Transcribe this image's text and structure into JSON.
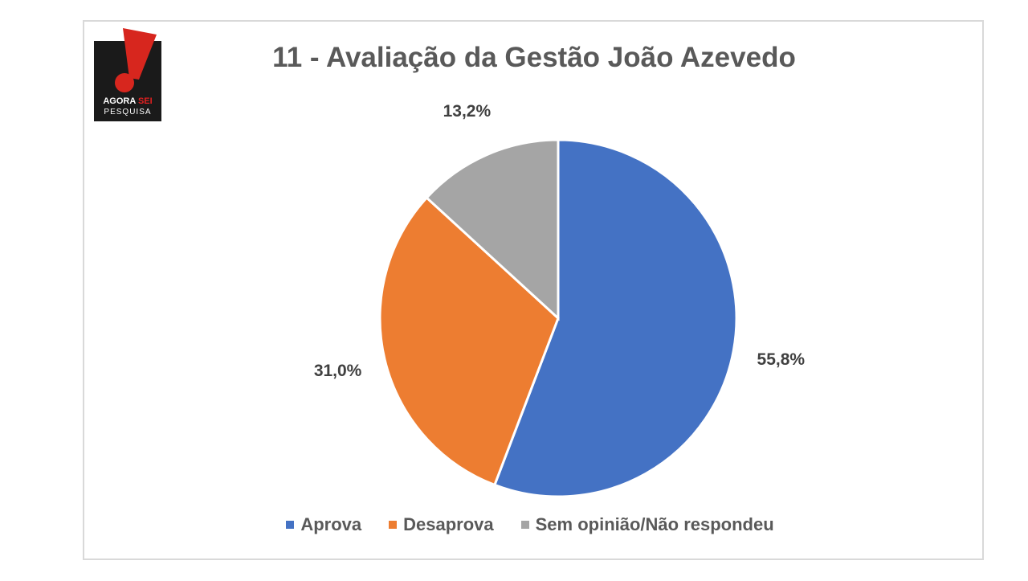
{
  "logo": {
    "line1_a": "AGORA",
    "line1_b": "SEI",
    "line2": "PESQUISA"
  },
  "chart_data": {
    "type": "pie",
    "title": "11 - Avaliação da Gestão João Azevedo",
    "categories": [
      "Aprova",
      "Desaprova",
      "Sem opinião/Não respondeu"
    ],
    "values": [
      55.8,
      31.0,
      13.2
    ],
    "value_labels": [
      "55,8%",
      "31,0%",
      "13,2%"
    ],
    "colors": [
      "#4472c4",
      "#ed7d31",
      "#a5a5a5"
    ],
    "legend": "bottom",
    "start": "top, clockwise"
  }
}
